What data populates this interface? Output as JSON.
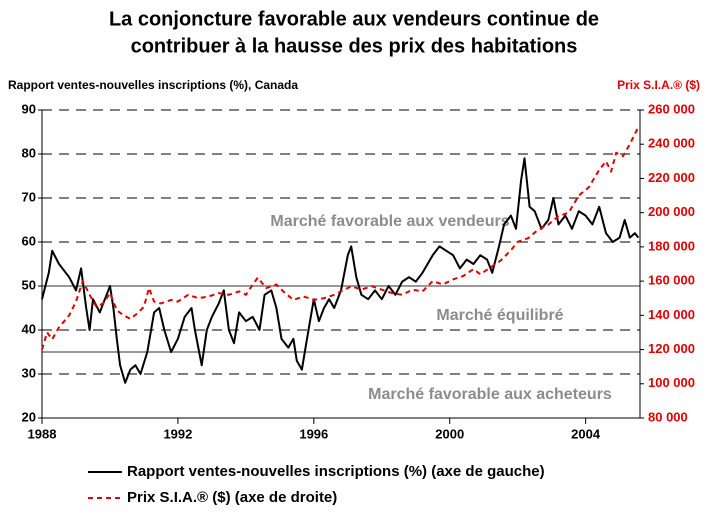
{
  "chart_data": {
    "type": "line",
    "title": [
      "La conjoncture favorable aux vendeurs continue de",
      "contribuer à la hausse des prix des habitations"
    ],
    "ylabel": "Rapport ventes-nouvelles inscriptions (%), Canada",
    "y2label": "Prix S.I.A.® ($)",
    "annotations": [
      "Marché favorable aux vendeurs",
      "Marché équilibré",
      "Marché favorable aux acheteurs"
    ],
    "reference_lines": [
      50,
      35
    ],
    "xlim": [
      1988,
      2005.6
    ],
    "xticks": [
      1988,
      1992,
      1996,
      2000,
      2004
    ],
    "ylim": [
      20,
      90
    ],
    "yticks": [
      20,
      30,
      40,
      50,
      60,
      70,
      80,
      90
    ],
    "y2lim": [
      80000,
      260000
    ],
    "y2ticks": [
      {
        "value": 80000,
        "label": "80 000"
      },
      {
        "value": 100000,
        "label": "100 000"
      },
      {
        "value": 120000,
        "label": "120 000"
      },
      {
        "value": 140000,
        "label": "140 000"
      },
      {
        "value": 160000,
        "label": "160 000"
      },
      {
        "value": 180000,
        "label": "180 000"
      },
      {
        "value": 200000,
        "label": "200 000"
      },
      {
        "value": 220000,
        "label": "220 000"
      },
      {
        "value": 240000,
        "label": "240 000"
      },
      {
        "value": 260000,
        "label": "260 000"
      }
    ],
    "grid": true,
    "series": [
      {
        "name": "Rapport ventes-nouvelles inscriptions (%) (axe de gauche)",
        "color": "#000000",
        "axis": "y",
        "dash": false,
        "x": [
          1988.0,
          1988.2,
          1988.3,
          1988.5,
          1988.8,
          1989.0,
          1989.15,
          1989.3,
          1989.4,
          1989.5,
          1989.7,
          1989.9,
          1990.0,
          1990.1,
          1990.2,
          1990.3,
          1990.45,
          1990.6,
          1990.75,
          1990.9,
          1991.1,
          1991.3,
          1991.45,
          1991.6,
          1991.8,
          1992.0,
          1992.2,
          1992.4,
          1992.5,
          1992.7,
          1992.85,
          1993.0,
          1993.2,
          1993.35,
          1993.5,
          1993.65,
          1993.8,
          1994.0,
          1994.2,
          1994.4,
          1994.55,
          1994.75,
          1994.9,
          1995.05,
          1995.25,
          1995.4,
          1995.5,
          1995.65,
          1995.8,
          1996.0,
          1996.15,
          1996.3,
          1996.45,
          1996.6,
          1996.8,
          1997.0,
          1997.1,
          1997.25,
          1997.4,
          1997.6,
          1997.8,
          1998.0,
          1998.2,
          1998.4,
          1998.6,
          1998.8,
          1999.0,
          1999.2,
          1999.5,
          1999.7,
          1999.9,
          2000.1,
          2000.3,
          2000.5,
          2000.7,
          2000.9,
          2001.1,
          2001.25,
          2001.45,
          2001.6,
          2001.8,
          2001.95,
          2002.1,
          2002.2,
          2002.35,
          2002.5,
          2002.7,
          2002.9,
          2003.05,
          2003.2,
          2003.4,
          2003.6,
          2003.8,
          2004.0,
          2004.2,
          2004.4,
          2004.6,
          2004.8,
          2005.0,
          2005.15,
          2005.3,
          2005.45,
          2005.55
        ],
        "values": [
          47,
          53,
          58,
          55,
          52,
          49,
          54,
          45,
          40,
          47,
          44,
          48,
          50,
          45,
          38,
          32,
          28,
          31,
          32,
          30,
          35,
          44,
          45,
          40,
          35,
          38,
          43,
          45,
          40,
          32,
          40,
          43,
          46,
          49,
          40,
          37,
          44,
          42,
          43,
          40,
          48,
          49,
          45,
          38,
          36,
          38,
          33,
          31,
          38,
          47,
          42,
          45,
          47,
          45,
          49,
          57,
          59,
          52,
          48,
          47,
          49,
          47,
          50,
          48,
          51,
          52,
          51,
          53,
          57,
          59,
          58,
          57,
          54,
          56,
          55,
          57,
          56,
          53,
          59,
          64,
          66,
          63,
          74,
          79,
          68,
          67,
          63,
          65,
          70,
          64,
          66,
          63,
          67,
          66,
          64,
          68,
          62,
          60,
          61,
          65,
          61,
          62,
          61
        ]
      },
      {
        "name": "Prix S.I.A.® ($) (axe de droite)",
        "color": "#e00000",
        "axis": "y2",
        "dash": true,
        "x": [
          1988.0,
          1988.15,
          1988.3,
          1988.5,
          1988.8,
          1989.0,
          1989.2,
          1989.4,
          1989.6,
          1989.8,
          1990.0,
          1990.2,
          1990.4,
          1990.6,
          1990.8,
          1991.0,
          1991.15,
          1991.3,
          1991.5,
          1991.8,
          1992.0,
          1992.3,
          1992.6,
          1992.9,
          1993.2,
          1993.5,
          1993.8,
          1994.0,
          1994.2,
          1994.35,
          1994.6,
          1994.9,
          1995.1,
          1995.4,
          1995.7,
          1996.0,
          1996.3,
          1996.6,
          1996.9,
          1997.1,
          1997.4,
          1997.7,
          1998.0,
          1998.3,
          1998.6,
          1998.9,
          1999.2,
          1999.5,
          1999.8,
          2000.1,
          2000.4,
          2000.7,
          2000.9,
          2001.2,
          2001.5,
          2001.8,
          2002.0,
          2002.3,
          2002.6,
          2002.9,
          2003.2,
          2003.5,
          2003.8,
          2004.1,
          2004.4,
          2004.6,
          2004.75,
          2004.9,
          2005.1,
          2005.3,
          2005.55
        ],
        "values": [
          120000,
          130000,
          126000,
          133000,
          140000,
          148000,
          160000,
          152000,
          145000,
          147000,
          153000,
          143000,
          140000,
          138000,
          141000,
          145000,
          156000,
          148000,
          147000,
          149000,
          148000,
          152000,
          150000,
          151000,
          153000,
          152000,
          154000,
          152000,
          158000,
          162000,
          156000,
          158000,
          154000,
          149000,
          151000,
          149000,
          150000,
          152000,
          155000,
          157000,
          155000,
          157000,
          155000,
          153000,
          152000,
          155000,
          154000,
          160000,
          158000,
          161000,
          163000,
          167000,
          164000,
          168000,
          172000,
          178000,
          183000,
          185000,
          190000,
          193000,
          198000,
          200000,
          210000,
          215000,
          225000,
          230000,
          224000,
          235000,
          233000,
          240000,
          250000
        ]
      }
    ]
  }
}
